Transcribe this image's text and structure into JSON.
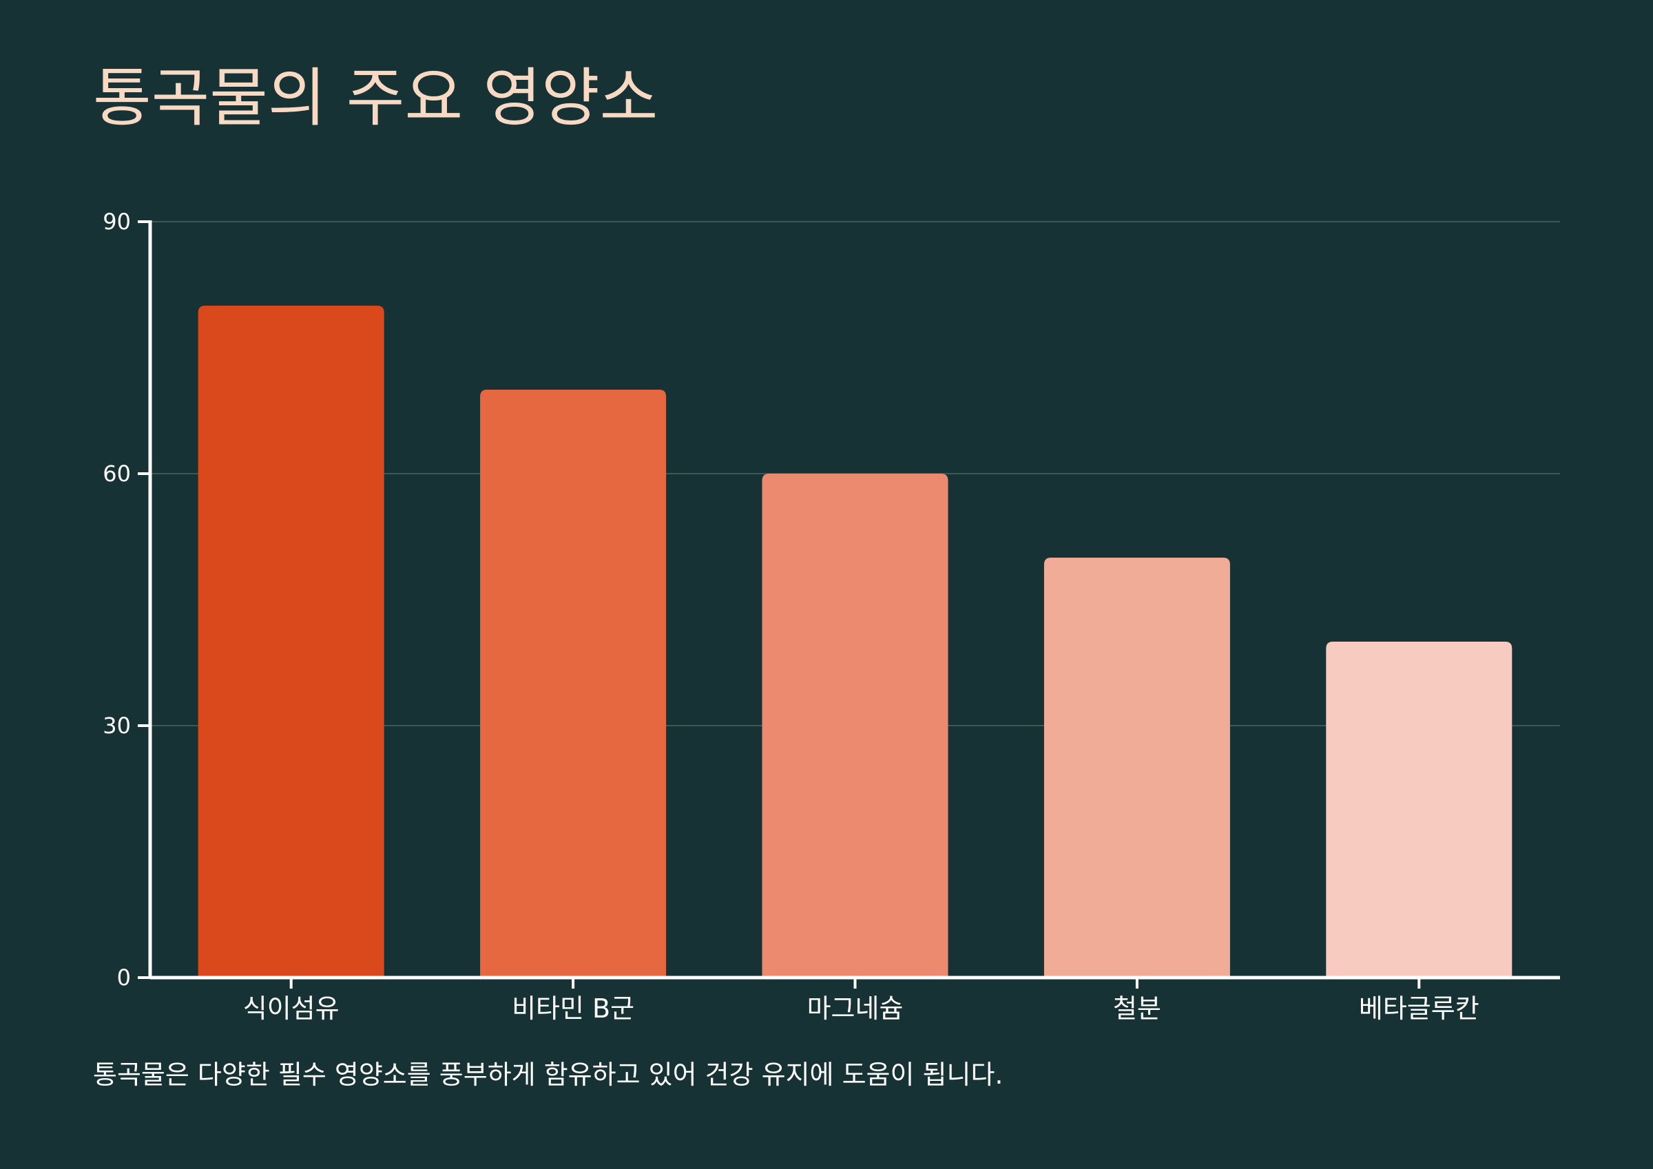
{
  "title": "통곡물의 주요 영양소",
  "caption": "통곡물은 다양한 필수 영양소를 풍부하게 함유하고 있어 건강 유지에 도움이 됩니다.",
  "colors": {
    "background": "#163234",
    "title": "#f8d9c3",
    "axis": "#ffffff",
    "grid": "#3d5856",
    "bars": [
      "#d9491c",
      "#e66841",
      "#ec8a70",
      "#f1ac97",
      "#f7cbbf"
    ]
  },
  "chart_data": {
    "type": "bar",
    "categories": [
      "식이섬유",
      "비타민 B군",
      "마그네슘",
      "철분",
      "베타글루칸"
    ],
    "values": [
      80,
      70,
      60,
      50,
      40
    ],
    "ylim": [
      0,
      90
    ],
    "yticks": [
      "0",
      "30",
      "60",
      "90"
    ],
    "grid": true,
    "legend": "none"
  }
}
